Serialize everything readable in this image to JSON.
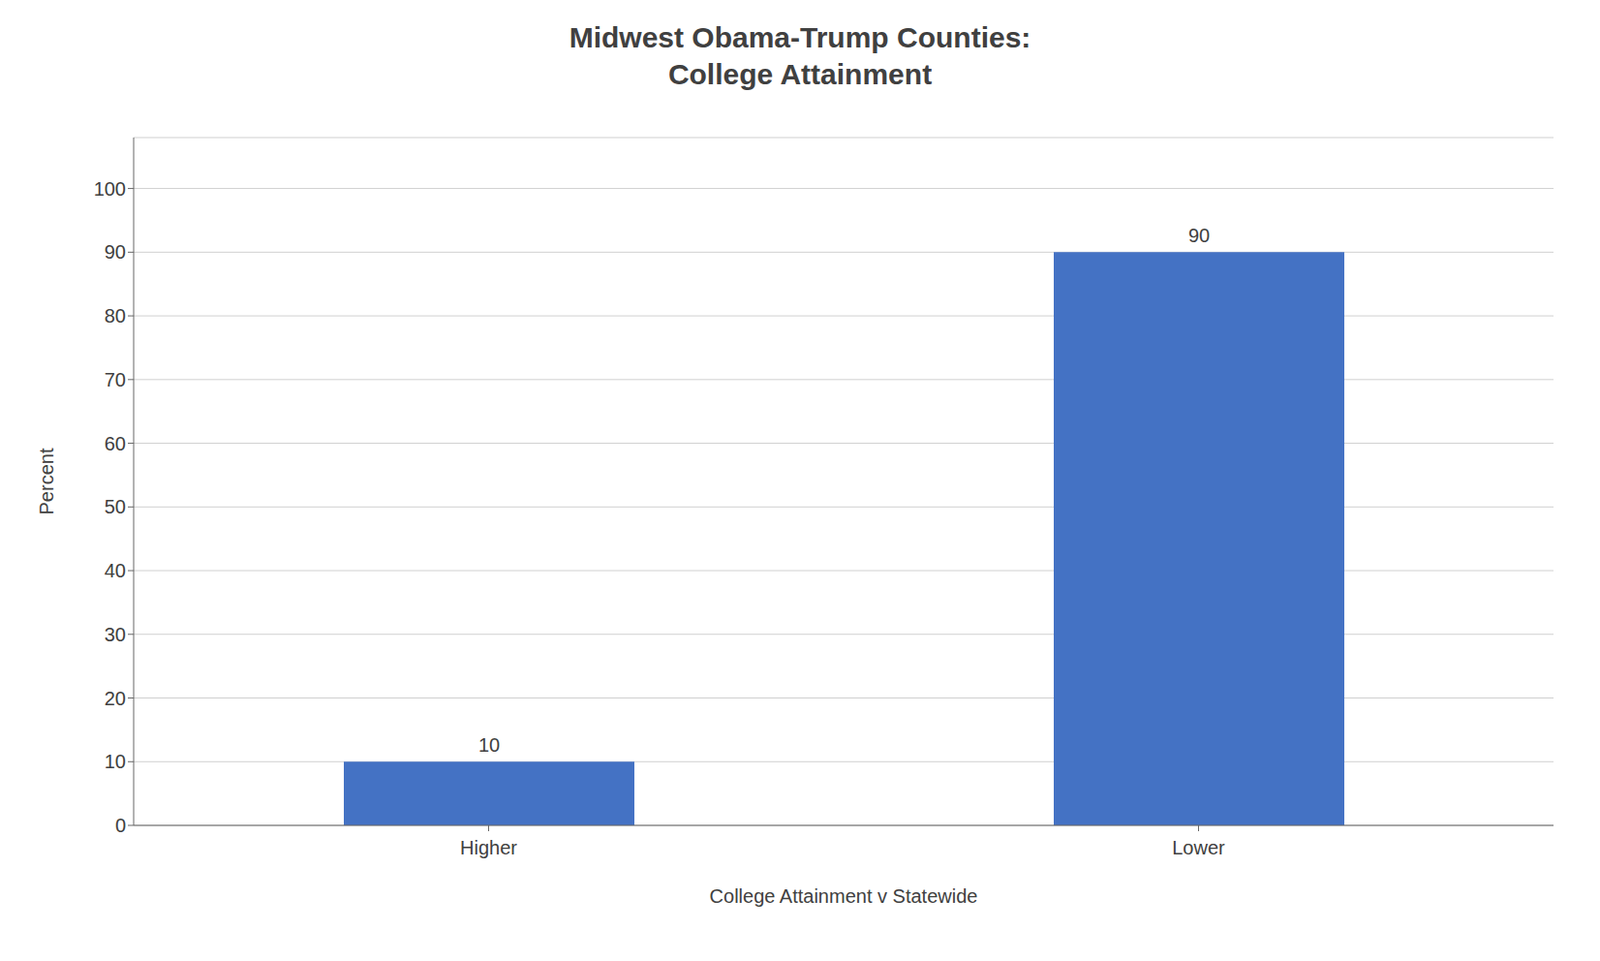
{
  "chart_data": {
    "type": "bar",
    "title": "Midwest Obama-Trump Counties:\nCollege Attainment",
    "xlabel": "College Attainment v Statewide",
    "ylabel": "Percent",
    "categories": [
      "Higher",
      "Lower"
    ],
    "values": [
      10,
      90
    ],
    "color": "#4472C4",
    "ylim": [
      0,
      108
    ],
    "yticks": [
      0,
      10,
      20,
      30,
      40,
      50,
      60,
      70,
      80,
      90,
      100
    ],
    "grid": true,
    "data_labels": true
  }
}
